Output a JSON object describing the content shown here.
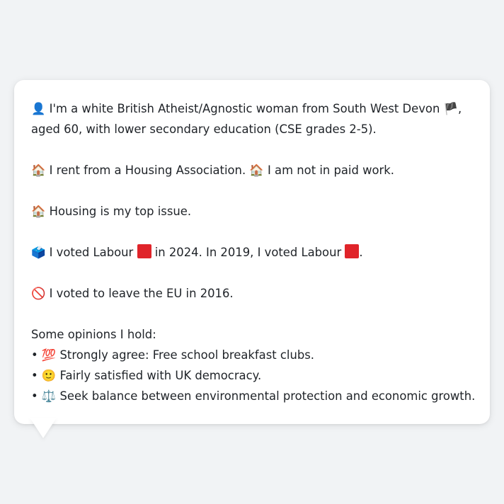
{
  "profile": {
    "identity": {
      "icon": "👤",
      "text": "I'm a white British Atheist/Agnostic woman from South West Devon",
      "flag": "🏴",
      "text_cont": ",",
      "text_line2": "aged 60, with lower secondary education (CSE grades 2-5)."
    },
    "housing": {
      "icon1": "🏠",
      "text1": "I rent from a Housing Association.",
      "icon2": "🏠",
      "text2": "I am not in paid work."
    },
    "top_issue": {
      "icon": "🏠",
      "text": "Housing is my top issue."
    },
    "votes": {
      "icon": "🗳️",
      "text1": "I voted Labour",
      "text2": "in 2024. In 2019, I voted Labour",
      "text3": ".",
      "party_color": "#e0242a"
    },
    "brexit": {
      "icon": "🚫",
      "text": "I voted to leave the EU in 2016."
    },
    "opinions": {
      "heading": "Some opinions I hold:",
      "items": [
        {
          "bullet": "•",
          "icon": "💯",
          "text": "Strongly agree: Free school breakfast clubs."
        },
        {
          "bullet": "•",
          "icon": "🙂",
          "text": "Fairly satisfied with UK democracy."
        },
        {
          "bullet": "•",
          "icon": "⚖️",
          "text": "Seek balance between environmental protection and economic growth."
        }
      ]
    }
  }
}
